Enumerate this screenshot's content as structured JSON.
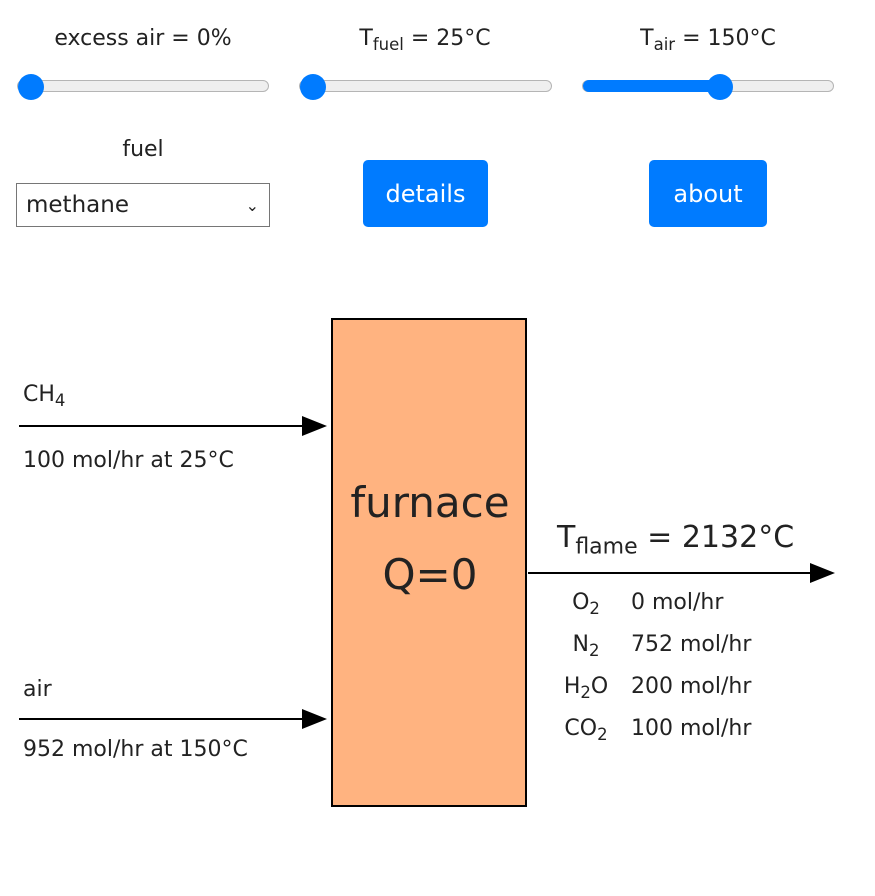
{
  "controls": {
    "excess_air": {
      "text": "excess air = 0%",
      "value": 0,
      "fraction": 0.0
    },
    "t_fuel": {
      "main": "T",
      "sub": "fuel",
      "rest": " = 25°C",
      "value": 25,
      "fraction": 0.0
    },
    "t_air": {
      "main": "T",
      "sub": "air",
      "rest": " = 150°C",
      "value": 150,
      "fraction": 0.55
    },
    "fuel_label": "fuel",
    "fuel_select": "methane",
    "details_button": "details",
    "about_button": "about",
    "accent": "#007bff"
  },
  "diagram": {
    "furnace": {
      "name": "furnace",
      "q": "Q=0",
      "color": "#ffb380"
    },
    "fuel_stream": {
      "main": "CH",
      "sub": "4",
      "flow": "100 mol/hr at 25°C"
    },
    "air_stream": {
      "label": "air",
      "flow": "952 mol/hr at 150°C"
    },
    "outlet": {
      "main": "T",
      "sub": "flame",
      "rest": " = 2132°C",
      "components": [
        {
          "pre": "O",
          "sub": "2",
          "post": "",
          "flow": "0 mol/hr"
        },
        {
          "pre": "N",
          "sub": "2",
          "post": "",
          "flow": "752 mol/hr"
        },
        {
          "pre": "H",
          "sub": "2",
          "post": "O",
          "flow": "200 mol/hr"
        },
        {
          "pre": "CO",
          "sub": "2",
          "post": "",
          "flow": "100 mol/hr"
        }
      ]
    }
  }
}
